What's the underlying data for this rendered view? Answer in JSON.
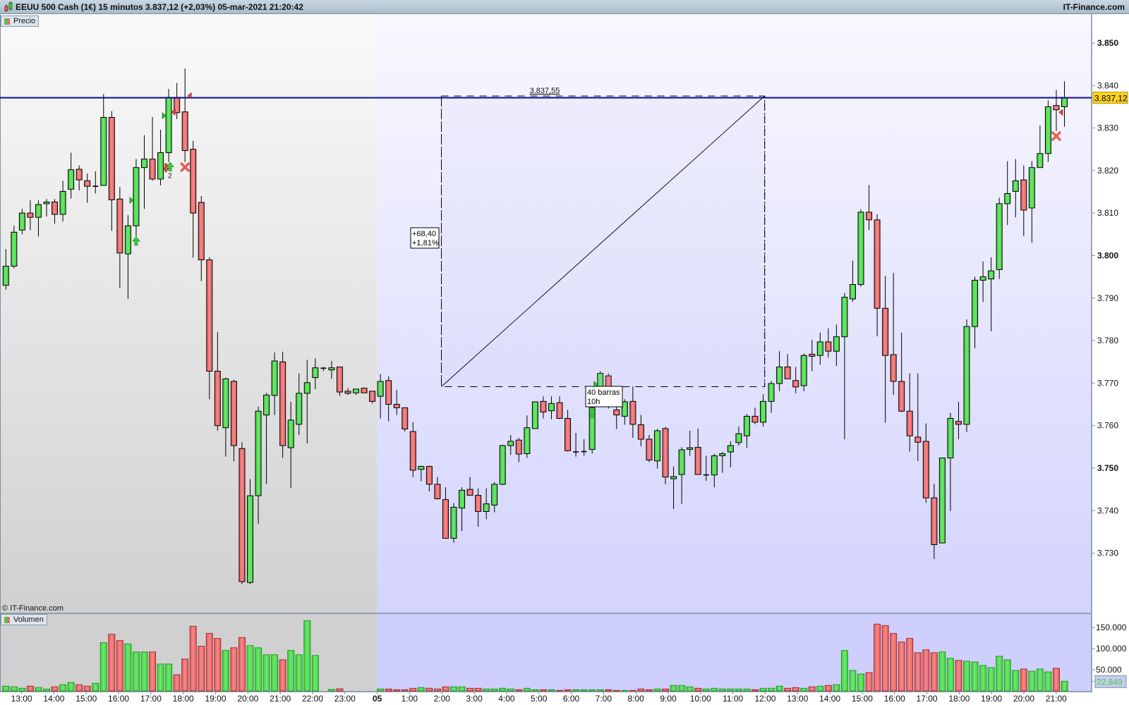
{
  "header": {
    "title": "EEUU 500 Cash (1€) 15 minutos 3.837,12 (+2,03%) 05-mar-2021 21:20:42",
    "brand": "IT-Finance.com"
  },
  "legend": {
    "price": "Precio",
    "volume": "Volumen",
    "copyright": "© IT-Finance.com"
  },
  "colors": {
    "up": "#55dd55",
    "down": "#ee7777",
    "last_price_line": "#0a0a9a",
    "last_price_badge": "#ffd21f",
    "volume_badge_text": "#44cc44",
    "session_past_bg": "#d6d6d6",
    "session_current_bg": "#d2d2fd"
  },
  "chart_data": {
    "type": "candlestick",
    "interval": "15 minutos",
    "title": "EEUU 500 Cash (1€)",
    "ohlc_fields": [
      "open",
      "high",
      "low",
      "close"
    ],
    "ohlc": [
      [
        3793,
        3801.5,
        3792,
        3797.5
      ],
      [
        3797.5,
        3807,
        3797,
        3805.5
      ],
      [
        3806,
        3811,
        3805,
        3810
      ],
      [
        3810,
        3813,
        3806,
        3809
      ],
      [
        3809,
        3813,
        3804.5,
        3812
      ],
      [
        3812.2,
        3813.3,
        3809.2,
        3812.6
      ],
      [
        3812.6,
        3813.3,
        3807.5,
        3809.7
      ],
      [
        3809.7,
        3817.6,
        3808,
        3815.1
      ],
      [
        3815.6,
        3824.2,
        3813.4,
        3820.2
      ],
      [
        3820.3,
        3821.2,
        3815.3,
        3817.8
      ],
      [
        3817.6,
        3819.3,
        3812.4,
        3816.3
      ],
      [
        3816.3,
        3819.8,
        3814.6,
        3816.3
      ],
      [
        3816.5,
        3838,
        3816.5,
        3832.5
      ],
      [
        3832.5,
        3834,
        3805.8,
        3813.1
      ],
      [
        3813.3,
        3816.1,
        3792.4,
        3800.6
      ],
      [
        3800.4,
        3809.5,
        3789.8,
        3807
      ],
      [
        3807,
        3822.7,
        3804.5,
        3820.7
      ],
      [
        3820.7,
        3828.3,
        3811,
        3822.7
      ],
      [
        3822.7,
        3832.6,
        3817.6,
        3818
      ],
      [
        3818,
        3829.6,
        3816.5,
        3824.2
      ],
      [
        3824.2,
        3839.2,
        3822,
        3837.2
      ],
      [
        3837.2,
        3840.6,
        3832.1,
        3833.6
      ],
      [
        3833.8,
        3844,
        3822,
        3824.7
      ],
      [
        3825,
        3827,
        3799.5,
        3810
      ],
      [
        3812.5,
        3814,
        3794,
        3799
      ],
      [
        3799,
        3799.6,
        3766.2,
        3772.8
      ],
      [
        3772.8,
        3782,
        3758.8,
        3760
      ],
      [
        3759.5,
        3771.3,
        3752.7,
        3771
      ],
      [
        3770.4,
        3770.8,
        3751.6,
        3755.3
      ],
      [
        3754.6,
        3756.1,
        3722.7,
        3723.3
      ],
      [
        3723.1,
        3747.4,
        3722.7,
        3743.5
      ],
      [
        3743.5,
        3764.5,
        3736.9,
        3763.4
      ],
      [
        3762.5,
        3767.7,
        3746.3,
        3767.2
      ],
      [
        3767.1,
        3777.2,
        3762.5,
        3775.2
      ],
      [
        3775,
        3777.4,
        3752.4,
        3755.3
      ],
      [
        3754.8,
        3765.6,
        3745.3,
        3761.3
      ],
      [
        3760.3,
        3772.3,
        3757.8,
        3767.6
      ],
      [
        3767.6,
        3775.5,
        3755.8,
        3770.1
      ],
      [
        3771.3,
        3775.8,
        3768.6,
        3773.6
      ],
      [
        3773.5,
        3773.8,
        3772.8,
        3773.5
      ],
      [
        3773.1,
        3775.2,
        3771,
        3773.6
      ],
      [
        3773.8,
        3773.8,
        3767,
        3767.9
      ],
      [
        3768.1,
        3768.8,
        3767.2,
        3767.6
      ],
      [
        3767.7,
        3768.6,
        3767.2,
        3768.6
      ],
      [
        3768.8,
        3769,
        3767.6,
        3767.7
      ],
      [
        3768.1,
        3768.1,
        3765.2,
        3765.7
      ],
      [
        3766.9,
        3772.1,
        3761.7,
        3770.4
      ],
      [
        3770.6,
        3771.6,
        3761,
        3765
      ],
      [
        3765,
        3768.4,
        3762.5,
        3764.2
      ],
      [
        3764.2,
        3764.2,
        3758.6,
        3759.2
      ],
      [
        3758.6,
        3760.8,
        3747.9,
        3749.5
      ],
      [
        3749.7,
        3750.6,
        3746.9,
        3750.4
      ],
      [
        3750.4,
        3750.6,
        3744.5,
        3746.2
      ],
      [
        3746.2,
        3747.9,
        3742.6,
        3742.8
      ],
      [
        3742.6,
        3745.5,
        3733.5,
        3733.5
      ],
      [
        3733.5,
        3741.8,
        3732.4,
        3740.8
      ],
      [
        3740.6,
        3745.5,
        3735.2,
        3744.8
      ],
      [
        3745,
        3747.9,
        3743.5,
        3743.6
      ],
      [
        3743.6,
        3745.2,
        3736.2,
        3739.8
      ],
      [
        3739.8,
        3745.3,
        3738,
        3741.6
      ],
      [
        3741.3,
        3746.7,
        3739.6,
        3746.2
      ],
      [
        3746.2,
        3755.5,
        3746,
        3755.3
      ],
      [
        3755.3,
        3757.8,
        3753.1,
        3756.3
      ],
      [
        3756.6,
        3757.1,
        3751.4,
        3753.3
      ],
      [
        3753.4,
        3762.4,
        3752.4,
        3759.5
      ],
      [
        3759.3,
        3765.7,
        3759.3,
        3765.6
      ],
      [
        3765.7,
        3766.9,
        3761.7,
        3763.2
      ],
      [
        3763.5,
        3766.9,
        3761.5,
        3765.2
      ],
      [
        3765.4,
        3766.9,
        3761.5,
        3761.7
      ],
      [
        3761.7,
        3763.7,
        3753.9,
        3754.1
      ],
      [
        3753.8,
        3758.3,
        3752.7,
        3753.8
      ],
      [
        3753.9,
        3756.8,
        3752.9,
        3753.9
      ],
      [
        3754.4,
        3765,
        3753.4,
        3764.2
      ],
      [
        3766.1,
        3772.8,
        3765,
        3772.3
      ],
      [
        3771.7,
        3772.3,
        3764,
        3765
      ],
      [
        3763.7,
        3766,
        3759.2,
        3762.5
      ],
      [
        3762.2,
        3766.2,
        3760.2,
        3765.6
      ],
      [
        3765.7,
        3769.2,
        3757.1,
        3760.3
      ],
      [
        3760.2,
        3762.5,
        3755.1,
        3756.8
      ],
      [
        3756.8,
        3757.8,
        3751.4,
        3751.9
      ],
      [
        3751.7,
        3759.2,
        3749.9,
        3758.8
      ],
      [
        3759.3,
        3759.7,
        3746.2,
        3747.9
      ],
      [
        3747.5,
        3750.4,
        3740.4,
        3748
      ],
      [
        3748.5,
        3754.9,
        3741.6,
        3754.3
      ],
      [
        3754.4,
        3758.8,
        3752.9,
        3754.8
      ],
      [
        3754.9,
        3759.3,
        3748.5,
        3748.5
      ],
      [
        3748.4,
        3752.9,
        3747,
        3748.4
      ],
      [
        3748.4,
        3753.4,
        3745.5,
        3752.9
      ],
      [
        3752.9,
        3753.8,
        3748.9,
        3753.4
      ],
      [
        3753.8,
        3756.3,
        3750.2,
        3755.3
      ],
      [
        3756,
        3759.8,
        3755.3,
        3758.1
      ],
      [
        3757.6,
        3762.7,
        3754.8,
        3762.2
      ],
      [
        3762.2,
        3764.2,
        3760.3,
        3760.8
      ],
      [
        3760.8,
        3767.4,
        3759.8,
        3765.7
      ],
      [
        3765.7,
        3770.5,
        3763,
        3769.9
      ],
      [
        3769.9,
        3777.5,
        3768.1,
        3773.8
      ],
      [
        3773.8,
        3776.8,
        3771,
        3771
      ],
      [
        3770.6,
        3773.8,
        3767.6,
        3769.1
      ],
      [
        3769.4,
        3777,
        3768.1,
        3776.5
      ],
      [
        3776.8,
        3780.2,
        3772.8,
        3776.3
      ],
      [
        3776.5,
        3781.9,
        3774.3,
        3779.7
      ],
      [
        3779.7,
        3782.9,
        3776,
        3777.5
      ],
      [
        3777.5,
        3783.8,
        3774,
        3780.9
      ],
      [
        3780.9,
        3791.2,
        3756.8,
        3790.2
      ],
      [
        3789.8,
        3798.8,
        3789.1,
        3793.2
      ],
      [
        3793.2,
        3810.9,
        3792.7,
        3810.2
      ],
      [
        3810.2,
        3816.6,
        3806,
        3808.4
      ],
      [
        3808.4,
        3809.7,
        3781,
        3787.6
      ],
      [
        3787.6,
        3795.2,
        3760.7,
        3776.5
      ],
      [
        3776.7,
        3795.9,
        3767.2,
        3770.4
      ],
      [
        3770.4,
        3781.9,
        3763.2,
        3763.4
      ],
      [
        3763.4,
        3772.3,
        3753.9,
        3757.6
      ],
      [
        3757.3,
        3772.3,
        3751.7,
        3756.1
      ],
      [
        3756.3,
        3760.5,
        3741.8,
        3743
      ],
      [
        3743,
        3746.3,
        3728.6,
        3732
      ],
      [
        3732.4,
        3752.4,
        3732.4,
        3752.4
      ],
      [
        3752.4,
        3763,
        3739.9,
        3761.7
      ],
      [
        3761,
        3765.6,
        3756.8,
        3760.3
      ],
      [
        3760.3,
        3785,
        3758.5,
        3783.3
      ],
      [
        3783.3,
        3795,
        3778.2,
        3794.2
      ],
      [
        3794.2,
        3798.6,
        3789.1,
        3795
      ],
      [
        3794.5,
        3799.6,
        3782.2,
        3796.4
      ],
      [
        3796.7,
        3813.6,
        3794.5,
        3812.2
      ],
      [
        3812.2,
        3822.2,
        3807.2,
        3814.6
      ],
      [
        3815.1,
        3822.7,
        3809,
        3817.6
      ],
      [
        3817.8,
        3821.2,
        3804.6,
        3810.7
      ],
      [
        3811.2,
        3822.2,
        3803,
        3820.7
      ],
      [
        3820.7,
        3830.6,
        3820.7,
        3824
      ],
      [
        3824,
        3836.5,
        3822,
        3835
      ],
      [
        3835.3,
        3839,
        3829.3,
        3834.3
      ],
      [
        3835,
        3841,
        3830.3,
        3837.12
      ]
    ],
    "volume": [
      11200,
      9600,
      6200,
      11200,
      7900,
      4500,
      9600,
      14600,
      19700,
      14600,
      11200,
      18000,
      114000,
      134000,
      119000,
      111000,
      92000,
      92000,
      92000,
      63500,
      63500,
      38200,
      75300,
      152800,
      105600,
      136000,
      124000,
      95500,
      102000,
      126000,
      107000,
      102000,
      85400,
      85400,
      73600,
      95500,
      85400,
      166000,
      83700,
      0,
      3400,
      5000,
      0,
      0,
      0,
      0,
      4500,
      4500,
      2800,
      2800,
      6200,
      7900,
      6200,
      4500,
      9600,
      9600,
      9600,
      6200,
      6200,
      4500,
      4500,
      6200,
      4500,
      2800,
      6200,
      2800,
      2800,
      2800,
      1100,
      2800,
      2800,
      2800,
      2800,
      2800,
      2800,
      1100,
      1100,
      1100,
      4500,
      2800,
      4500,
      4500,
      12900,
      12900,
      9600,
      6200,
      4500,
      6200,
      4500,
      4500,
      4500,
      4500,
      2800,
      6200,
      6200,
      11200,
      6200,
      7900,
      6200,
      9600,
      11200,
      12900,
      14600,
      95500,
      48300,
      39900,
      43300,
      157900,
      154500,
      136000,
      115700,
      124200,
      90400,
      97200,
      90400,
      92100,
      77000,
      72000,
      70200,
      68500,
      60100,
      55100,
      82000,
      73600,
      48300,
      51700,
      46600,
      51700,
      44900,
      53400,
      22849
    ],
    "price_axis": {
      "range": [
        3718,
        3858
      ],
      "ticks": [
        3850,
        3840,
        3830,
        3820,
        3810,
        3800,
        3790,
        3780,
        3770,
        3760,
        3750,
        3740,
        3730
      ],
      "labels": [
        "3.850",
        "3.840",
        "3.830",
        "3.820",
        "3.810",
        "3.800",
        "3.790",
        "3.780",
        "3.770",
        "3.760",
        "3.750",
        "3.740",
        "3.730"
      ],
      "bold": [
        true,
        false,
        false,
        false,
        false,
        true,
        false,
        false,
        false,
        false,
        true,
        false,
        false
      ]
    },
    "volume_axis": {
      "ticks": [
        150000,
        100000,
        50000
      ],
      "labels": [
        "150.000",
        "100.000",
        "50.000"
      ]
    },
    "time_axis": {
      "labels": [
        "13:00",
        "14:00",
        "15:00",
        "16:00",
        "17:00",
        "18:00",
        "19:00",
        "20:00",
        "21:00",
        "22:00",
        "23:00",
        "05",
        "1:00",
        "2:00",
        "3:00",
        "4:00",
        "5:00",
        "6:00",
        "7:00",
        "8:00",
        "9:00",
        "10:00",
        "11:00",
        "12:00",
        "13:00",
        "14:00",
        "15:00",
        "16:00",
        "17:00",
        "18:00",
        "19:00",
        "20:00",
        "21:00"
      ],
      "day_label": "05"
    },
    "last_price": {
      "value": 3837.12,
      "label": "3.837,12"
    },
    "last_volume": {
      "value": 22849,
      "label": "22.849"
    },
    "measure": {
      "start_price": 3769.15,
      "end_price": 3837.55,
      "end_label": "3.837,55",
      "change_label": "+68,40",
      "percent_label": "+1,81%",
      "bars_label": "40 barras",
      "duration_label": "10h"
    },
    "markers": [
      {
        "icon": "long-entry-flag",
        "bar": 16,
        "price": 3813
      },
      {
        "icon": "buy-arrow-up",
        "bar": 16,
        "price": 3803.4
      },
      {
        "icon": "long-entry-flag",
        "bar": 20,
        "price": 3832.9
      },
      {
        "icon": "exit-flag",
        "bar": 20,
        "price": 3833.7
      },
      {
        "icon": "sell-arrow-down",
        "bar": 20,
        "price": 3820.6
      },
      {
        "icon": "buy-arrow-up",
        "bar": 20,
        "price": 3820.9,
        "text": "2"
      },
      {
        "icon": "exit-flag",
        "bar": 22,
        "price": 3837.6
      },
      {
        "icon": "stop-cross",
        "bar": 22,
        "price": 3820.8
      },
      {
        "icon": "long-entry-flag",
        "bar": 73,
        "price": 3769.7
      },
      {
        "icon": "buy-arrow-up",
        "bar": 72,
        "price": 3762.9
      },
      {
        "icon": "exit-flag",
        "bar": 129,
        "price": 3833.7
      },
      {
        "icon": "stop-cross",
        "bar": 129,
        "price": 3828.1
      }
    ]
  }
}
